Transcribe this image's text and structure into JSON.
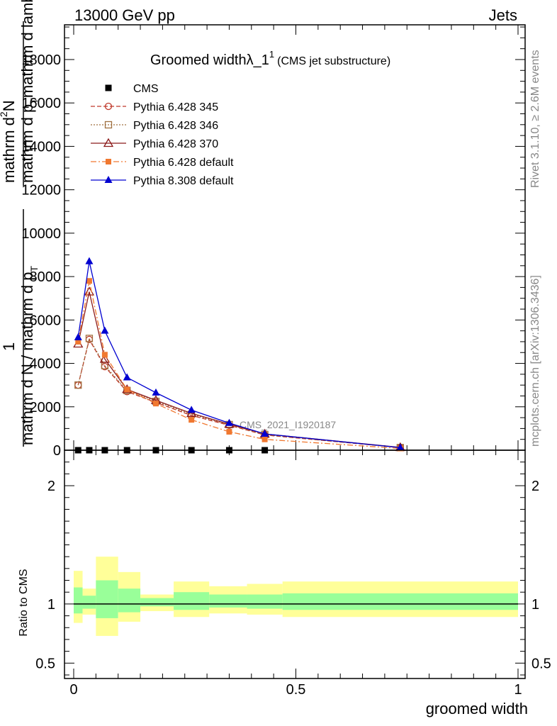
{
  "header": {
    "energy_label": "13000 GeV pp",
    "category_label": "Jets"
  },
  "side_labels": {
    "rivet": "Rivet 3.1.10, ≥ 2.6M events",
    "mcplots": "mcplots.cern.ch [arXiv:1306.3436]"
  },
  "chart_data": [
    {
      "type": "line",
      "title_main": "Groomed widthλ_1",
      "title_sup": "1",
      "title_note": "(CMS jet substructure)",
      "watermark": "CMS_2021_I1920187",
      "ylabel_lines": [
        "mathrm d²N",
        "mathrm d p_T mathrm d lambda",
        "1",
        "mathrm d N / mathrm d p_T"
      ],
      "ylabel_display": {
        "a": "mathrm d",
        "b": "N",
        "c": "mathrm d p",
        "d": "T",
        "e": "mathrm d lambda",
        "f": "1",
        "g": "mathrm d N / mathrm d p",
        "h": "T"
      },
      "xlim": [
        0,
        1
      ],
      "ylim": [
        0,
        19600
      ],
      "yticks": [
        {
          "v": 0,
          "label": "0"
        },
        {
          "v": 2000,
          "label": "2000"
        },
        {
          "v": 4000,
          "label": "4000"
        },
        {
          "v": 6000,
          "label": "6000"
        },
        {
          "v": 8000,
          "label": "8000"
        },
        {
          "v": 10000,
          "label": "10000"
        },
        {
          "v": 12000,
          "label": "12000"
        },
        {
          "v": 14000,
          "label": "14000"
        },
        {
          "v": 16000,
          "label": "16000"
        },
        {
          "v": 18000,
          "label": "18000"
        }
      ],
      "series": [
        {
          "name": "CMS",
          "style": "data",
          "color": "#000000",
          "x": [
            0.01,
            0.035,
            0.07,
            0.12,
            0.185,
            0.265,
            0.35,
            0.43
          ],
          "y": [
            0,
            0,
            0,
            0,
            0,
            0,
            0,
            0
          ]
        },
        {
          "name": "Pythia 6.428 345",
          "style": "p345",
          "color": "#c0392b",
          "x": [
            0.01,
            0.035,
            0.07,
            0.12,
            0.185,
            0.265,
            0.35,
            0.43,
            0.735
          ],
          "y": [
            3000,
            5100,
            3850,
            2700,
            2200,
            1600,
            1150,
            700,
            120
          ]
        },
        {
          "name": "Pythia 6.428 346",
          "style": "p346",
          "color": "#a07040",
          "x": [
            0.01,
            0.035,
            0.07,
            0.12,
            0.185,
            0.265,
            0.35,
            0.43,
            0.735
          ],
          "y": [
            3000,
            5150,
            3900,
            2750,
            2250,
            1650,
            1180,
            720,
            120
          ]
        },
        {
          "name": "Pythia 6.428 370",
          "style": "p370",
          "color": "#8b1a1a",
          "x": [
            0.01,
            0.035,
            0.07,
            0.12,
            0.185,
            0.265,
            0.35,
            0.43,
            0.735
          ],
          "y": [
            4900,
            7300,
            4200,
            2800,
            2300,
            1700,
            1200,
            750,
            130
          ]
        },
        {
          "name": "Pythia 6.428 default",
          "style": "pdef",
          "color": "#f07830",
          "x": [
            0.01,
            0.035,
            0.07,
            0.12,
            0.185,
            0.265,
            0.35,
            0.43,
            0.735
          ],
          "y": [
            5000,
            7800,
            4400,
            2800,
            2150,
            1400,
            850,
            500,
            80
          ]
        },
        {
          "name": "Pythia 8.308 default",
          "style": "p8",
          "color": "#0000d0",
          "x": [
            0.01,
            0.035,
            0.07,
            0.12,
            0.185,
            0.265,
            0.35,
            0.43,
            0.735
          ],
          "y": [
            5200,
            8700,
            5500,
            3350,
            2650,
            1850,
            1250,
            750,
            120
          ]
        }
      ]
    },
    {
      "type": "area",
      "ylabel": "Ratio to CMS",
      "xlabel": "groomed width",
      "xlim": [
        0,
        1
      ],
      "ylim": [
        0.37,
        2.3
      ],
      "yticks": [
        {
          "v": 0.5,
          "label": "0.5"
        },
        {
          "v": 1,
          "label": "1"
        },
        {
          "v": 2,
          "label": "2"
        }
      ],
      "xticks": [
        {
          "v": 0,
          "label": "0"
        },
        {
          "v": 0.5,
          "label": "0.5"
        },
        {
          "v": 1,
          "label": "1"
        }
      ],
      "reference_line": 1,
      "colors": {
        "inner": "#99ff99",
        "outer": "#ffff99"
      },
      "bins": [
        {
          "x0": 0.0,
          "x1": 0.02,
          "inner": [
            0.92,
            1.14
          ],
          "outer": [
            0.84,
            1.28
          ]
        },
        {
          "x0": 0.02,
          "x1": 0.05,
          "inner": [
            0.96,
            1.07
          ],
          "outer": [
            0.91,
            1.13
          ]
        },
        {
          "x0": 0.05,
          "x1": 0.1,
          "inner": [
            0.88,
            1.2
          ],
          "outer": [
            0.73,
            1.4
          ]
        },
        {
          "x0": 0.1,
          "x1": 0.15,
          "inner": [
            0.93,
            1.13
          ],
          "outer": [
            0.85,
            1.27
          ]
        },
        {
          "x0": 0.15,
          "x1": 0.225,
          "inner": [
            0.98,
            1.05
          ],
          "outer": [
            0.94,
            1.08
          ]
        },
        {
          "x0": 0.225,
          "x1": 0.305,
          "inner": [
            0.95,
            1.1
          ],
          "outer": [
            0.89,
            1.19
          ]
        },
        {
          "x0": 0.305,
          "x1": 0.39,
          "inner": [
            0.97,
            1.08
          ],
          "outer": [
            0.92,
            1.15
          ]
        },
        {
          "x0": 0.39,
          "x1": 0.47,
          "inner": [
            0.96,
            1.08
          ],
          "outer": [
            0.91,
            1.17
          ]
        },
        {
          "x0": 0.47,
          "x1": 1.0,
          "inner": [
            0.95,
            1.09
          ],
          "outer": [
            0.89,
            1.19
          ]
        }
      ]
    }
  ]
}
